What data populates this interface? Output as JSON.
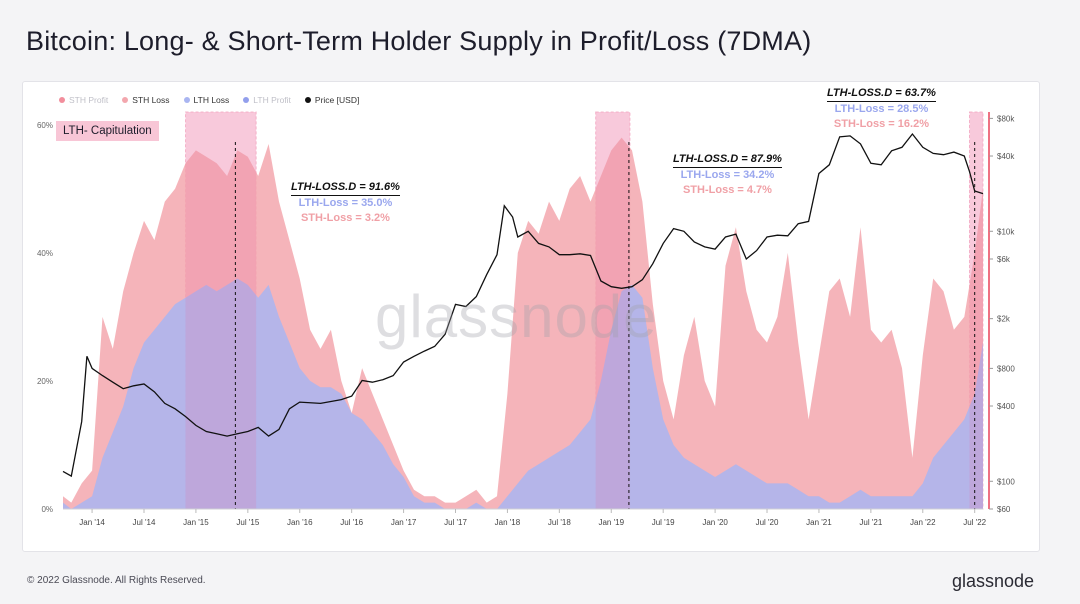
{
  "title": "Bitcoin: Long- & Short-Term Holder Supply in Profit/Loss (7DMA)",
  "legend": [
    {
      "label": "STH Profit",
      "color": "#e9435a",
      "muted": true
    },
    {
      "label": "STH Loss",
      "color": "#f3a7ae",
      "muted": false
    },
    {
      "label": "LTH Loss",
      "color": "#a9b5f1",
      "muted": false
    },
    {
      "label": "LTH Profit",
      "color": "#4a5fe0",
      "muted": true
    },
    {
      "label": "Price [USD]",
      "color": "#111111",
      "muted": false
    }
  ],
  "capitulation_label": "LTH- Capitulation",
  "annotations": [
    {
      "head": "LTH-LOSS.D = 91.6%",
      "lth": "LTH-Loss = 35.0%",
      "sth": "STH-Loss = 3.2%"
    },
    {
      "head": "LTH-LOSS.D = 87.9%",
      "lth": "LTH-Loss = 34.2%",
      "sth": "STH-Loss = 4.7%"
    },
    {
      "head": "LTH-LOSS.D = 63.7%",
      "lth": "LTH-Loss = 28.5%",
      "sth": "STH-Loss = 16.2%"
    }
  ],
  "watermark": "glassnode",
  "footer": {
    "copyright": "© 2022 Glassnode. All Rights Reserved.",
    "brand": "glassnode"
  },
  "colors": {
    "sth_loss": "#f3a7ae",
    "lth_loss": "#a9b5f1",
    "capitulation": "#fbc3d6",
    "price": "#111111",
    "sth_profit": "#e9435a"
  },
  "chart_data": {
    "type": "area",
    "x_ticks": [
      "Jan '14",
      "Jul '14",
      "Jan '15",
      "Jul '15",
      "Jan '16",
      "Jul '16",
      "Jan '17",
      "Jul '17",
      "Jan '18",
      "Jul '18",
      "Jan '19",
      "Jul '19",
      "Jan '20",
      "Jul '20",
      "Jan '21",
      "Jul '21",
      "Jan '22",
      "Jul '22"
    ],
    "y_left_ticks": [
      "0%",
      "20%",
      "40%",
      "60%"
    ],
    "y_left_range": [
      0,
      62
    ],
    "y_right_ticks": [
      "$60",
      "$100",
      "$400",
      "$800",
      "$2k",
      "$6k",
      "$10k",
      "$40k",
      "$80k"
    ],
    "y_right_range": [
      60,
      90000
    ],
    "y_right_scale": "log",
    "x_range": [
      2013.72,
      2022.58
    ],
    "series": [
      {
        "name": "STH Loss",
        "x": [
          2013.72,
          2013.8,
          2013.9,
          2014.0,
          2014.1,
          2014.2,
          2014.3,
          2014.4,
          2014.5,
          2014.6,
          2014.7,
          2014.8,
          2014.9,
          2015.0,
          2015.1,
          2015.2,
          2015.3,
          2015.4,
          2015.5,
          2015.6,
          2015.7,
          2015.8,
          2015.9,
          2016.0,
          2016.1,
          2016.2,
          2016.3,
          2016.4,
          2016.5,
          2016.6,
          2016.7,
          2016.8,
          2016.9,
          2017.0,
          2017.1,
          2017.2,
          2017.3,
          2017.4,
          2017.5,
          2017.6,
          2017.7,
          2017.8,
          2017.9,
          2018.0,
          2018.1,
          2018.2,
          2018.3,
          2018.4,
          2018.5,
          2018.6,
          2018.7,
          2018.8,
          2018.9,
          2019.0,
          2019.1,
          2019.2,
          2019.3,
          2019.4,
          2019.5,
          2019.6,
          2019.7,
          2019.8,
          2019.9,
          2020.0,
          2020.1,
          2020.2,
          2020.3,
          2020.4,
          2020.5,
          2020.6,
          2020.7,
          2020.8,
          2020.9,
          2021.0,
          2021.1,
          2021.2,
          2021.3,
          2021.4,
          2021.5,
          2021.6,
          2021.7,
          2021.8,
          2021.9,
          2022.0,
          2022.1,
          2022.2,
          2022.3,
          2022.4,
          2022.5,
          2022.58
        ],
        "values": [
          2,
          1,
          4,
          6,
          30,
          25,
          34,
          40,
          45,
          42,
          48,
          50,
          54,
          56,
          55,
          54,
          52,
          56,
          55,
          52,
          57,
          48,
          42,
          36,
          28,
          25,
          28,
          20,
          15,
          22,
          18,
          14,
          10,
          6,
          3,
          2,
          2,
          1,
          1,
          2,
          3,
          1,
          2,
          18,
          40,
          45,
          43,
          48,
          45,
          50,
          52,
          48,
          52,
          56,
          58,
          56,
          48,
          32,
          20,
          14,
          24,
          30,
          20,
          16,
          38,
          44,
          34,
          28,
          26,
          30,
          40,
          26,
          14,
          24,
          34,
          36,
          30,
          44,
          28,
          26,
          28,
          22,
          8,
          24,
          36,
          34,
          28,
          30,
          40,
          50
        ]
      },
      {
        "name": "LTH Loss",
        "x": [
          2013.72,
          2013.8,
          2013.9,
          2014.0,
          2014.1,
          2014.2,
          2014.3,
          2014.4,
          2014.5,
          2014.6,
          2014.7,
          2014.8,
          2014.9,
          2015.0,
          2015.1,
          2015.2,
          2015.3,
          2015.4,
          2015.5,
          2015.6,
          2015.7,
          2015.8,
          2015.9,
          2016.0,
          2016.1,
          2016.2,
          2016.3,
          2016.4,
          2016.5,
          2016.6,
          2016.7,
          2016.8,
          2016.9,
          2017.0,
          2017.1,
          2017.2,
          2017.3,
          2017.4,
          2017.5,
          2017.6,
          2017.7,
          2017.8,
          2017.9,
          2018.0,
          2018.1,
          2018.2,
          2018.3,
          2018.4,
          2018.5,
          2018.6,
          2018.7,
          2018.8,
          2018.9,
          2019.0,
          2019.1,
          2019.2,
          2019.3,
          2019.4,
          2019.5,
          2019.6,
          2019.7,
          2019.8,
          2019.9,
          2020.0,
          2020.1,
          2020.2,
          2020.3,
          2020.4,
          2020.5,
          2020.6,
          2020.7,
          2020.8,
          2020.9,
          2021.0,
          2021.1,
          2021.2,
          2021.3,
          2021.4,
          2021.5,
          2021.6,
          2021.7,
          2021.8,
          2021.9,
          2022.0,
          2022.1,
          2022.2,
          2022.3,
          2022.4,
          2022.5,
          2022.58
        ],
        "values": [
          1,
          0,
          1,
          2,
          8,
          12,
          16,
          22,
          26,
          28,
          30,
          32,
          33,
          34,
          35,
          34,
          35,
          36,
          35,
          33,
          35,
          30,
          26,
          22,
          20,
          19,
          19,
          18,
          15,
          14,
          12,
          10,
          7,
          5,
          2,
          1,
          1,
          0,
          0,
          0,
          1,
          0,
          0,
          2,
          4,
          6,
          7,
          8,
          9,
          10,
          12,
          14,
          20,
          28,
          34,
          35,
          33,
          22,
          14,
          10,
          8,
          7,
          6,
          5,
          6,
          7,
          6,
          5,
          4,
          4,
          4,
          3,
          2,
          2,
          1,
          1,
          2,
          3,
          2,
          2,
          2,
          2,
          2,
          4,
          8,
          10,
          12,
          14,
          18,
          26
        ]
      }
    ],
    "price": {
      "x": [
        2013.72,
        2013.8,
        2013.9,
        2013.95,
        2014.0,
        2014.1,
        2014.2,
        2014.3,
        2014.4,
        2014.5,
        2014.6,
        2014.7,
        2014.8,
        2014.9,
        2015.0,
        2015.1,
        2015.2,
        2015.3,
        2015.4,
        2015.5,
        2015.6,
        2015.7,
        2015.8,
        2015.9,
        2016.0,
        2016.2,
        2016.4,
        2016.5,
        2016.6,
        2016.7,
        2016.8,
        2016.9,
        2017.0,
        2017.1,
        2017.2,
        2017.3,
        2017.4,
        2017.5,
        2017.6,
        2017.7,
        2017.8,
        2017.9,
        2017.97,
        2018.05,
        2018.1,
        2018.2,
        2018.3,
        2018.4,
        2018.5,
        2018.6,
        2018.7,
        2018.8,
        2018.9,
        2019.0,
        2019.1,
        2019.2,
        2019.3,
        2019.4,
        2019.5,
        2019.6,
        2019.7,
        2019.8,
        2019.9,
        2020.0,
        2020.1,
        2020.2,
        2020.3,
        2020.4,
        2020.5,
        2020.6,
        2020.7,
        2020.8,
        2020.9,
        2021.0,
        2021.1,
        2021.2,
        2021.3,
        2021.4,
        2021.5,
        2021.6,
        2021.7,
        2021.8,
        2021.9,
        2022.0,
        2022.1,
        2022.2,
        2022.3,
        2022.4,
        2022.45,
        2022.5,
        2022.58
      ],
      "values": [
        120,
        110,
        300,
        1000,
        800,
        700,
        620,
        550,
        580,
        600,
        520,
        420,
        380,
        330,
        280,
        250,
        240,
        230,
        240,
        250,
        270,
        230,
        260,
        380,
        430,
        420,
        450,
        480,
        640,
        620,
        650,
        700,
        900,
        1000,
        1100,
        1200,
        1500,
        2600,
        2500,
        3000,
        4500,
        6500,
        16000,
        13000,
        9000,
        10000,
        8000,
        7500,
        6500,
        6500,
        6600,
        6400,
        4000,
        3600,
        3500,
        3600,
        4100,
        5500,
        8000,
        10500,
        10000,
        8200,
        7500,
        7200,
        9000,
        9500,
        6000,
        7000,
        9000,
        9300,
        9200,
        11500,
        12000,
        29000,
        34000,
        57000,
        58000,
        50000,
        35000,
        34000,
        44000,
        47000,
        60000,
        47000,
        42000,
        41000,
        43000,
        40000,
        30000,
        21000,
        20000
      ]
    },
    "capitulation_bands": [
      {
        "x0": 2014.9,
        "x1": 2015.58
      },
      {
        "x0": 2018.85,
        "x1": 2019.18
      },
      {
        "x0": 2022.45,
        "x1": 2022.58
      }
    ],
    "markers_x": [
      2015.38,
      2019.17,
      2022.5
    ]
  }
}
